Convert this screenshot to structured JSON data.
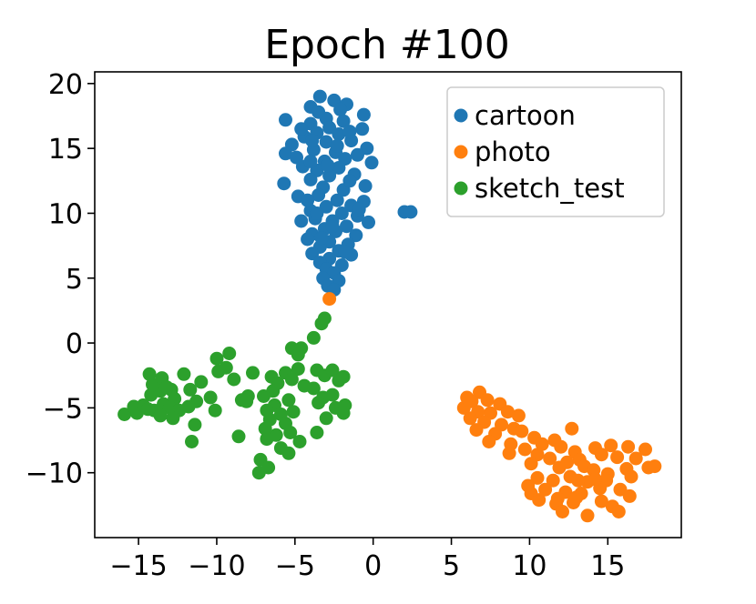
{
  "chart_data": {
    "type": "scatter",
    "title": "Epoch #100",
    "xlabel": "",
    "ylabel": "",
    "xlim": [
      -17.8,
      19.7
    ],
    "ylim": [
      -15.0,
      20.9
    ],
    "xticks": [
      -15,
      -10,
      -5,
      0,
      5,
      10,
      15
    ],
    "xtick_labels": [
      "−15",
      "−10",
      "−5",
      "0",
      "5",
      "10",
      "15"
    ],
    "yticks": [
      -10,
      -5,
      0,
      5,
      10,
      15,
      20
    ],
    "ytick_labels": [
      "−10",
      "−5",
      "0",
      "5",
      "10",
      "15",
      "20"
    ],
    "grid": false,
    "legend_position": "top-right",
    "series": [
      {
        "name": "cartoon",
        "color": "#1f77b4",
        "points": [
          [
            -3.4,
            19.0
          ],
          [
            -2.5,
            18.7
          ],
          [
            -1.7,
            18.4
          ],
          [
            -4.0,
            18.2
          ],
          [
            -2.1,
            18.0
          ],
          [
            -0.6,
            17.6
          ],
          [
            -5.6,
            17.2
          ],
          [
            -3.0,
            17.3
          ],
          [
            -1.9,
            17.1
          ],
          [
            -4.0,
            16.9
          ],
          [
            -2.8,
            16.6
          ],
          [
            -0.7,
            16.5
          ],
          [
            -3.6,
            16.2
          ],
          [
            -2.2,
            16.1
          ],
          [
            -4.4,
            15.9
          ],
          [
            -1.4,
            15.6
          ],
          [
            -3.0,
            15.5
          ],
          [
            -5.2,
            15.3
          ],
          [
            -0.4,
            15.0
          ],
          [
            -3.8,
            14.9
          ],
          [
            -2.4,
            14.7
          ],
          [
            -5.6,
            14.6
          ],
          [
            -4.9,
            14.3
          ],
          [
            -1.8,
            14.2
          ],
          [
            -3.1,
            14.0
          ],
          [
            -0.1,
            13.9
          ],
          [
            -4.5,
            13.6
          ],
          [
            -2.2,
            13.5
          ],
          [
            -3.6,
            13.3
          ],
          [
            -1.2,
            13.0
          ],
          [
            -2.8,
            12.9
          ],
          [
            -4.0,
            12.6
          ],
          [
            -5.7,
            12.3
          ],
          [
            -0.5,
            12.1
          ],
          [
            -3.2,
            12.0
          ],
          [
            -1.9,
            11.8
          ],
          [
            -3.5,
            11.4
          ],
          [
            -4.8,
            11.3
          ],
          [
            -2.3,
            11.0
          ],
          [
            -0.6,
            10.9
          ],
          [
            -1.4,
            10.6
          ],
          [
            -3.0,
            10.5
          ],
          [
            -4.0,
            10.2
          ],
          [
            -2.0,
            10.0
          ],
          [
            -1.0,
            9.8
          ],
          [
            -3.7,
            9.6
          ],
          [
            -2.6,
            9.4
          ],
          [
            -4.6,
            9.4
          ],
          [
            -0.3,
            9.3
          ],
          [
            -1.7,
            9.0
          ],
          [
            -3.1,
            8.8
          ],
          [
            -2.4,
            8.6
          ],
          [
            -3.9,
            8.4
          ],
          [
            -1.1,
            8.3
          ],
          [
            -4.2,
            8.0
          ],
          [
            -2.8,
            7.8
          ],
          [
            -1.6,
            7.6
          ],
          [
            -3.4,
            7.4
          ],
          [
            -2.2,
            7.1
          ],
          [
            -3.9,
            6.9
          ],
          [
            -1.4,
            6.8
          ],
          [
            -2.8,
            6.5
          ],
          [
            -3.4,
            6.2
          ],
          [
            -2.0,
            6.0
          ],
          [
            -3.0,
            5.7
          ],
          [
            -2.5,
            5.4
          ],
          [
            -3.2,
            5.0
          ],
          [
            -2.2,
            4.8
          ],
          [
            -2.9,
            4.4
          ],
          [
            -2.5,
            4.1
          ],
          [
            -3.5,
            17.8
          ],
          [
            -4.6,
            16.5
          ],
          [
            -1.0,
            14.5
          ],
          [
            -4.2,
            11.0
          ],
          [
            -1.5,
            12.5
          ],
          [
            -3.3,
            8.1
          ],
          [
            -2.3,
            15.2
          ],
          [
            -3.9,
            15.6
          ],
          [
            -4.0,
            14.0
          ],
          [
            -0.9,
            10.3
          ],
          [
            -1.8,
            7.0
          ],
          [
            -2.6,
            9.0
          ],
          [
            -3.6,
            10.0
          ],
          [
            -2.9,
            13.7
          ],
          [
            -1.5,
            16.3
          ],
          [
            2.0,
            10.1
          ],
          [
            2.4,
            10.1
          ]
        ]
      },
      {
        "name": "photo",
        "color": "#ff7f0e",
        "points": [
          [
            -2.8,
            3.4
          ],
          [
            6.8,
            -3.8
          ],
          [
            6.3,
            -4.5
          ],
          [
            7.3,
            -4.4
          ],
          [
            8.1,
            -4.7
          ],
          [
            5.8,
            -5.0
          ],
          [
            6.7,
            -5.3
          ],
          [
            7.5,
            -5.4
          ],
          [
            8.6,
            -5.3
          ],
          [
            9.3,
            -5.6
          ],
          [
            6.2,
            -5.8
          ],
          [
            7.1,
            -6.1
          ],
          [
            8.2,
            -6.3
          ],
          [
            9.0,
            -6.6
          ],
          [
            6.6,
            -6.7
          ],
          [
            7.8,
            -7.0
          ],
          [
            9.5,
            -6.8
          ],
          [
            10.3,
            -7.3
          ],
          [
            12.7,
            -6.6
          ],
          [
            7.4,
            -7.6
          ],
          [
            8.8,
            -7.8
          ],
          [
            10.8,
            -7.8
          ],
          [
            11.6,
            -7.5
          ],
          [
            9.7,
            -8.2
          ],
          [
            10.5,
            -8.6
          ],
          [
            12.0,
            -8.0
          ],
          [
            12.9,
            -8.4
          ],
          [
            14.2,
            -8.1
          ],
          [
            15.2,
            -7.9
          ],
          [
            16.3,
            -8.0
          ],
          [
            17.4,
            -8.2
          ],
          [
            11.3,
            -8.9
          ],
          [
            13.2,
            -9.0
          ],
          [
            14.6,
            -8.6
          ],
          [
            15.6,
            -8.8
          ],
          [
            16.8,
            -8.9
          ],
          [
            10.1,
            -9.3
          ],
          [
            11.9,
            -9.6
          ],
          [
            13.5,
            -9.5
          ],
          [
            14.1,
            -9.8
          ],
          [
            15.0,
            -10.1
          ],
          [
            16.2,
            -9.7
          ],
          [
            17.6,
            -9.6
          ],
          [
            18.0,
            -9.5
          ],
          [
            10.5,
            -10.4
          ],
          [
            11.5,
            -10.6
          ],
          [
            12.6,
            -10.3
          ],
          [
            13.7,
            -10.7
          ],
          [
            14.9,
            -10.6
          ],
          [
            16.5,
            -10.3
          ],
          [
            9.9,
            -11.0
          ],
          [
            11.0,
            -11.3
          ],
          [
            12.3,
            -11.5
          ],
          [
            13.3,
            -11.6
          ],
          [
            14.5,
            -11.2
          ],
          [
            15.8,
            -11.3
          ],
          [
            11.8,
            -12.0
          ],
          [
            12.8,
            -12.3
          ],
          [
            13.0,
            -11.9
          ],
          [
            14.6,
            -12.2
          ],
          [
            16.4,
            -11.8
          ],
          [
            11.7,
            -12.4
          ],
          [
            15.3,
            -12.6
          ],
          [
            12.1,
            -13.0
          ],
          [
            15.7,
            -13.0
          ],
          [
            13.7,
            -13.3
          ],
          [
            10.1,
            -11.6
          ],
          [
            12.4,
            -9.2
          ],
          [
            14.2,
            -10.5
          ],
          [
            8.7,
            -8.5
          ],
          [
            13.1,
            -10.6
          ],
          [
            10.6,
            -12.1
          ],
          [
            6.0,
            -4.2
          ]
        ]
      },
      {
        "name": "sketch_test",
        "color": "#2ca02c",
        "points": [
          [
            -15.9,
            -5.5
          ],
          [
            -15.1,
            -5.4
          ],
          [
            -15.3,
            -4.9
          ],
          [
            -14.7,
            -4.8
          ],
          [
            -14.0,
            -5.2
          ],
          [
            -13.4,
            -4.7
          ],
          [
            -14.2,
            -4.0
          ],
          [
            -13.6,
            -3.7
          ],
          [
            -14.1,
            -3.2
          ],
          [
            -13.5,
            -2.7
          ],
          [
            -12.9,
            -3.6
          ],
          [
            -12.7,
            -4.3
          ],
          [
            -13.0,
            -5.0
          ],
          [
            -12.4,
            -5.2
          ],
          [
            -13.6,
            -5.6
          ],
          [
            -12.8,
            -5.8
          ],
          [
            -14.3,
            -2.4
          ],
          [
            -12.1,
            -2.4
          ],
          [
            -11.7,
            -3.6
          ],
          [
            -11.3,
            -4.5
          ],
          [
            -10.4,
            -4.2
          ],
          [
            -10.1,
            -5.2
          ],
          [
            -11.4,
            -6.3
          ],
          [
            -11.6,
            -7.6
          ],
          [
            -11.0,
            -3.0
          ],
          [
            -10.0,
            -1.2
          ],
          [
            -9.9,
            -2.2
          ],
          [
            -9.4,
            -1.9
          ],
          [
            -8.9,
            -2.8
          ],
          [
            -7.7,
            -2.3
          ],
          [
            -8.4,
            -4.4
          ],
          [
            -8.0,
            -4.1
          ],
          [
            -6.5,
            -2.6
          ],
          [
            -5.6,
            -2.3
          ],
          [
            -4.8,
            -2.0
          ],
          [
            -6.1,
            -3.1
          ],
          [
            -5.2,
            -2.8
          ],
          [
            -4.4,
            -3.3
          ],
          [
            -6.4,
            -3.7
          ],
          [
            -7.0,
            -4.1
          ],
          [
            -6.3,
            -4.8
          ],
          [
            -5.4,
            -4.4
          ],
          [
            -6.8,
            -5.2
          ],
          [
            -5.9,
            -5.5
          ],
          [
            -5.1,
            -5.3
          ],
          [
            -6.6,
            -5.9
          ],
          [
            -5.6,
            -6.2
          ],
          [
            -6.9,
            -6.6
          ],
          [
            -6.2,
            -7.1
          ],
          [
            -5.3,
            -6.9
          ],
          [
            -4.7,
            -7.6
          ],
          [
            -6.8,
            -7.4
          ],
          [
            -5.9,
            -8.1
          ],
          [
            -5.4,
            -8.5
          ],
          [
            -7.2,
            -9.0
          ],
          [
            -6.7,
            -9.6
          ],
          [
            -7.3,
            -10.0
          ],
          [
            -8.6,
            -7.2
          ],
          [
            -3.6,
            -2.1
          ],
          [
            -3.1,
            -2.5
          ],
          [
            -2.6,
            -2.1
          ],
          [
            -2.2,
            -2.9
          ],
          [
            -1.9,
            -2.6
          ],
          [
            -3.8,
            -3.5
          ],
          [
            -3.2,
            -4.2
          ],
          [
            -2.6,
            -4.0
          ],
          [
            -3.5,
            -4.6
          ],
          [
            -2.4,
            -5.0
          ],
          [
            -1.9,
            -5.4
          ],
          [
            -3.0,
            -5.8
          ],
          [
            -3.6,
            -6.9
          ],
          [
            -1.8,
            -4.8
          ],
          [
            -5.2,
            -0.4
          ],
          [
            -4.6,
            -0.4
          ],
          [
            -4.8,
            -0.9
          ],
          [
            -3.8,
            0.4
          ],
          [
            -3.3,
            1.5
          ],
          [
            -3.1,
            1.9
          ],
          [
            -9.2,
            -0.8
          ],
          [
            -8.1,
            -4.5
          ],
          [
            -13.2,
            -3.4
          ],
          [
            -11.8,
            -4.9
          ],
          [
            -14.4,
            -5.1
          ]
        ]
      }
    ]
  }
}
